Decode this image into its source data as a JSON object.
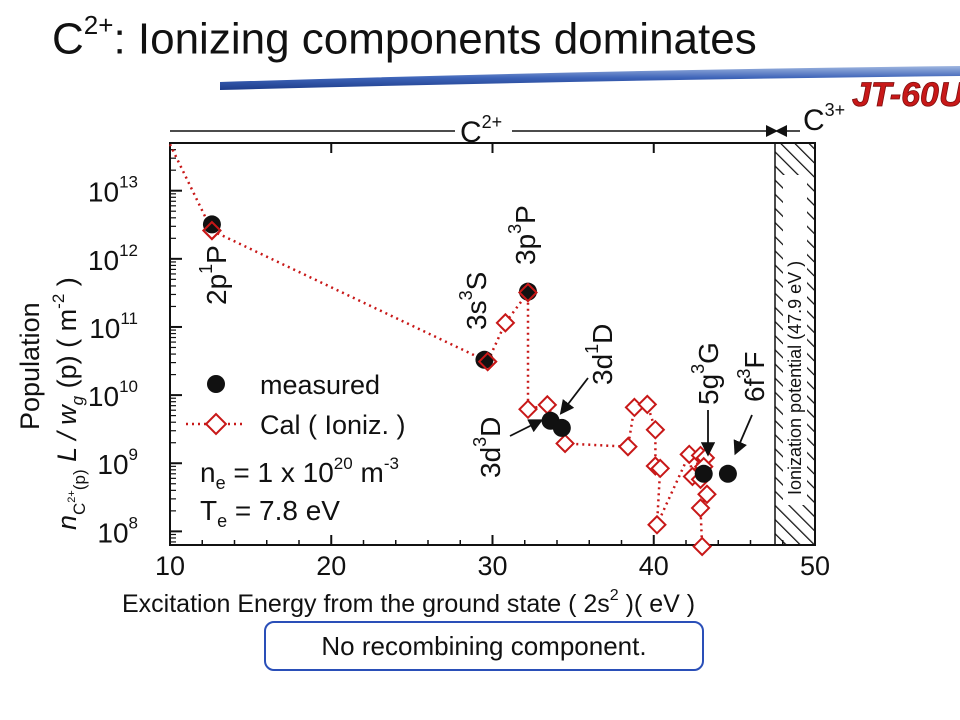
{
  "title": {
    "base": "C",
    "sup": "2+",
    "rest": ": Ionizing components dominates"
  },
  "logo": "JT-60U",
  "note": "No recombining component.",
  "chart_data": {
    "type": "scatter",
    "xlabel_main": "Excitation Energy from the ground state ( 2s",
    "xlabel_sup": "2",
    "xlabel_end": " )( eV )",
    "ylabel_line1": "Population",
    "ylabel_parts": {
      "n": "n",
      "sub": "C",
      "subsup": "2+",
      "subp": "(p)",
      "mid": " L / w",
      "g": "g",
      "rest": " (p) ( m",
      "exp": "-2",
      "close": " )"
    },
    "xlim": [
      10,
      50
    ],
    "ylim_log10": [
      7.8,
      13.7
    ],
    "y_scale": "log",
    "x_ticks": [
      "10",
      "20",
      "30",
      "40",
      "50"
    ],
    "x_tick_values": [
      10,
      20,
      30,
      40,
      50
    ],
    "y_tick_exponents": [
      8,
      9,
      10,
      11,
      12,
      13
    ],
    "y_tick_base": "10",
    "ion_labels": {
      "c2": "C",
      "c2sup": "2+",
      "c3": "C",
      "c3sup": "3+"
    },
    "ionization_label": "Ionization potential  (47.9 eV )",
    "ionization_potential": 47.9,
    "legend": {
      "measured": "measured",
      "cal": "Cal ( Ioniz. )",
      "ne_text": "n",
      "ne_sub": "e",
      "ne_val": " = 1 x 10",
      "ne_exp": "20",
      "ne_unit": " m",
      "ne_unit_exp": "-3",
      "te_text": "T",
      "te_sub": "e",
      "te_val": " = 7.8 eV"
    },
    "series": [
      {
        "name": "measured",
        "points": [
          [
            12.6,
            3200000000000.0
          ],
          [
            29.5,
            33000000000.0
          ],
          [
            32.2,
            330000000000.0
          ],
          [
            33.6,
            4200000000.0
          ],
          [
            34.3,
            3300000000.0
          ],
          [
            43.1,
            700000000.0
          ],
          [
            44.6,
            700000000.0
          ]
        ]
      },
      {
        "name": "Cal ( Ioniz. )",
        "points": [
          [
            10.0,
            48000000000000.0
          ],
          [
            12.6,
            2600000000000.0
          ],
          [
            29.7,
            31000000000.0
          ],
          [
            30.8,
            115000000000.0
          ],
          [
            32.2,
            320000000000.0
          ],
          [
            32.2,
            6200000000.0
          ],
          [
            33.4,
            7200000000.0
          ],
          [
            34.5,
            1950000000.0
          ],
          [
            38.4,
            1750000000.0
          ],
          [
            38.8,
            6600000000.0
          ],
          [
            39.6,
            7300000000.0
          ],
          [
            40.1,
            3100000000.0
          ],
          [
            40.1,
            910000000.0
          ],
          [
            40.4,
            840000000.0
          ],
          [
            40.2,
            125000000.0
          ],
          [
            42.2,
            1350000000.0
          ],
          [
            42.4,
            640000000.0
          ],
          [
            42.9,
            1300000000.0
          ],
          [
            43.2,
            1200000000.0
          ],
          [
            43.1,
            890000000.0
          ],
          [
            42.9,
            580000000.0
          ],
          [
            43.3,
            350000000.0
          ],
          [
            42.9,
            220000000.0
          ],
          [
            43.0,
            60000000.0
          ]
        ]
      }
    ],
    "level_labels": [
      {
        "main": "2p",
        "sup": "1",
        "sym": "P"
      },
      {
        "main": "3s",
        "sup": "3",
        "sym": "S"
      },
      {
        "main": "3p",
        "sup": "3",
        "sym": "P"
      },
      {
        "main": "3d",
        "sup": "1",
        "sym": "D"
      },
      {
        "main": "3d",
        "sup": "3",
        "sym": "D"
      },
      {
        "main": "5g",
        "sup": "3",
        "sym": "G"
      },
      {
        "main": "6f",
        "sup": "3",
        "sym": "F"
      }
    ]
  }
}
